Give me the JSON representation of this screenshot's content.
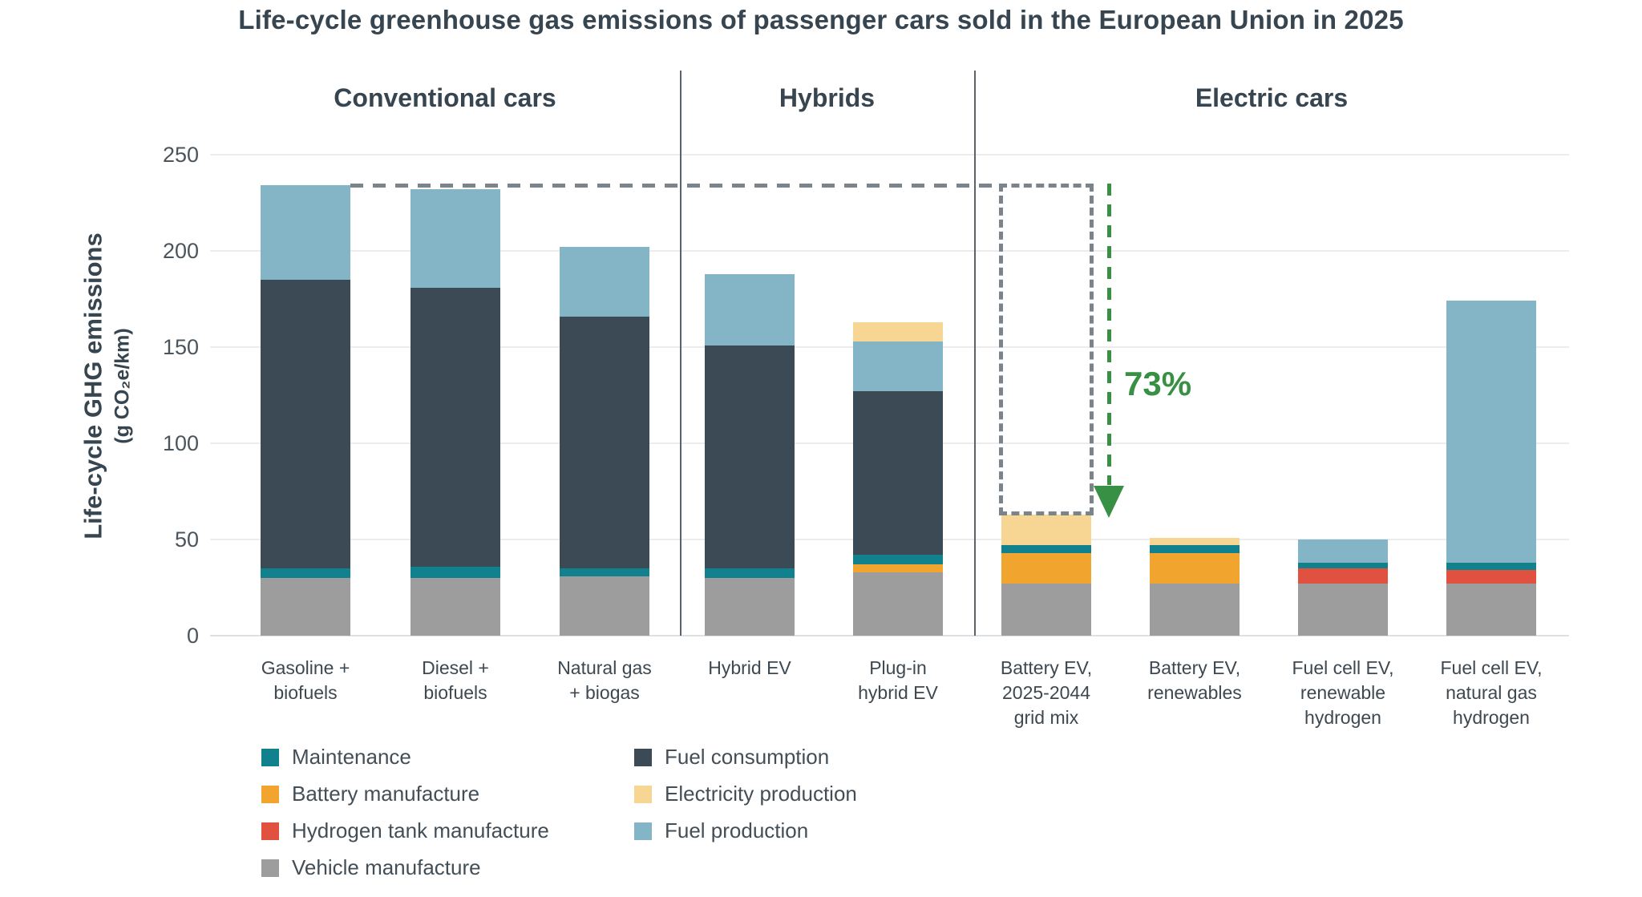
{
  "title": "Life-cycle greenhouse gas emissions of passenger cars sold in the European Union in 2025",
  "y_axis": {
    "label_main": "Life-cycle GHG emissions",
    "label_sub": "(g CO₂e/km)",
    "ticks": [
      0,
      50,
      100,
      150,
      200,
      250
    ]
  },
  "colors": {
    "maintenance": "#11818e",
    "battery_manufacture": "#f1a42e",
    "hydrogen_tank_manufacture": "#e0523f",
    "vehicle_manufacture": "#9d9d9d",
    "fuel_consumption": "#3b4a55",
    "electricity_production": "#f7d694",
    "fuel_production": "#83b5c6",
    "annotation_green": "#389044",
    "dashed_gray": "#7b848b"
  },
  "legend": {
    "columns": [
      [
        {
          "key": "maintenance",
          "label": "Maintenance"
        },
        {
          "key": "battery_manufacture",
          "label": "Battery manufacture"
        },
        {
          "key": "hydrogen_tank_manufacture",
          "label": "Hydrogen tank manufacture"
        },
        {
          "key": "vehicle_manufacture",
          "label": "Vehicle manufacture"
        }
      ],
      [
        {
          "key": "fuel_consumption",
          "label": "Fuel consumption"
        },
        {
          "key": "electricity_production",
          "label": "Electricity production"
        },
        {
          "key": "fuel_production",
          "label": "Fuel production"
        }
      ]
    ]
  },
  "chart_data": {
    "type": "bar",
    "stacked": true,
    "title": "Life-cycle greenhouse gas emissions of passenger cars sold in the European Union in 2025",
    "ylabel": "Life-cycle GHG emissions (g CO₂e/km)",
    "unit": "g CO2e/km",
    "ylim": [
      0,
      250
    ],
    "yticks": [
      0,
      50,
      100,
      150,
      200,
      250
    ],
    "grid": "horizontal",
    "legend_position": "bottom",
    "groups": [
      {
        "label": "Conventional cars",
        "bar_count": 3
      },
      {
        "label": "Hybrids",
        "bar_count": 2
      },
      {
        "label": "Electric cars",
        "bar_count": 4
      }
    ],
    "bars": [
      {
        "label_lines": [
          "Gasoline +",
          "biofuels"
        ],
        "group": "Conventional cars",
        "total": 234,
        "segments": [
          {
            "key": "vehicle_manufacture",
            "value": 30
          },
          {
            "key": "maintenance",
            "value": 5
          },
          {
            "key": "fuel_consumption",
            "value": 150
          },
          {
            "key": "fuel_production",
            "value": 49
          }
        ]
      },
      {
        "label_lines": [
          "Diesel +",
          "biofuels"
        ],
        "group": "Conventional cars",
        "total": 232,
        "segments": [
          {
            "key": "vehicle_manufacture",
            "value": 30
          },
          {
            "key": "maintenance",
            "value": 6
          },
          {
            "key": "fuel_consumption",
            "value": 145
          },
          {
            "key": "fuel_production",
            "value": 51
          }
        ]
      },
      {
        "label_lines": [
          "Natural gas",
          "+ biogas"
        ],
        "group": "Conventional cars",
        "total": 202,
        "segments": [
          {
            "key": "vehicle_manufacture",
            "value": 31
          },
          {
            "key": "maintenance",
            "value": 4
          },
          {
            "key": "fuel_consumption",
            "value": 131
          },
          {
            "key": "fuel_production",
            "value": 36
          }
        ]
      },
      {
        "label_lines": [
          "Hybrid EV"
        ],
        "group": "Hybrids",
        "total": 188,
        "segments": [
          {
            "key": "vehicle_manufacture",
            "value": 30
          },
          {
            "key": "maintenance",
            "value": 5
          },
          {
            "key": "fuel_consumption",
            "value": 116
          },
          {
            "key": "fuel_production",
            "value": 37
          }
        ]
      },
      {
        "label_lines": [
          "Plug-in",
          "hybrid EV"
        ],
        "group": "Hybrids",
        "total": 163,
        "segments": [
          {
            "key": "vehicle_manufacture",
            "value": 33
          },
          {
            "key": "battery_manufacture",
            "value": 4
          },
          {
            "key": "maintenance",
            "value": 5
          },
          {
            "key": "fuel_consumption",
            "value": 85
          },
          {
            "key": "fuel_production",
            "value": 26
          },
          {
            "key": "electricity_production",
            "value": 10
          }
        ]
      },
      {
        "label_lines": [
          "Battery EV,",
          "2025-2044",
          "grid mix"
        ],
        "group": "Electric cars",
        "total": 63,
        "segments": [
          {
            "key": "vehicle_manufacture",
            "value": 27
          },
          {
            "key": "battery_manufacture",
            "value": 16
          },
          {
            "key": "maintenance",
            "value": 4
          },
          {
            "key": "electricity_production",
            "value": 16
          }
        ]
      },
      {
        "label_lines": [
          "Battery EV,",
          "renewables"
        ],
        "group": "Electric cars",
        "total": 51,
        "segments": [
          {
            "key": "vehicle_manufacture",
            "value": 27
          },
          {
            "key": "battery_manufacture",
            "value": 16
          },
          {
            "key": "maintenance",
            "value": 4
          },
          {
            "key": "electricity_production",
            "value": 4
          }
        ]
      },
      {
        "label_lines": [
          "Fuel cell EV,",
          "renewable",
          "hydrogen"
        ],
        "group": "Electric cars",
        "total": 50,
        "segments": [
          {
            "key": "vehicle_manufacture",
            "value": 27
          },
          {
            "key": "hydrogen_tank_manufacture",
            "value": 8
          },
          {
            "key": "maintenance",
            "value": 3
          },
          {
            "key": "fuel_production",
            "value": 12
          }
        ]
      },
      {
        "label_lines": [
          "Fuel cell EV,",
          "natural gas",
          "hydrogen"
        ],
        "group": "Electric cars",
        "total": 174,
        "segments": [
          {
            "key": "vehicle_manufacture",
            "value": 27
          },
          {
            "key": "hydrogen_tank_manufacture",
            "value": 7
          },
          {
            "key": "maintenance",
            "value": 4
          },
          {
            "key": "fuel_production",
            "value": 136
          }
        ]
      }
    ],
    "annotation": {
      "label": "73%",
      "from_value": 234,
      "to_value": 63,
      "meaning": "emission reduction from gasoline car to battery EV (2025-2044 grid mix)"
    }
  }
}
